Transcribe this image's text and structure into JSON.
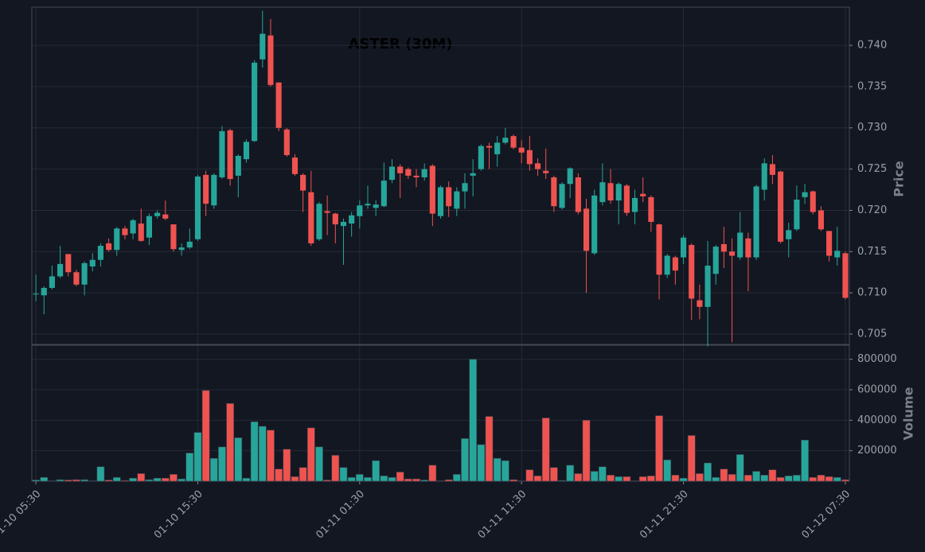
{
  "chart_data": {
    "type": "candlestick",
    "title": "ASTER (30M)",
    "ylabel": "Price",
    "up_color": "#26a69a",
    "down_color": "#ef5350",
    "grid": true,
    "categories": [
      "01-10 05:30",
      null,
      null,
      null,
      null,
      null,
      null,
      null,
      null,
      null,
      null,
      null,
      null,
      null,
      null,
      null,
      null,
      null,
      null,
      null,
      "01-10 15:30",
      null,
      null,
      null,
      null,
      null,
      null,
      null,
      null,
      null,
      null,
      null,
      null,
      null,
      null,
      null,
      null,
      null,
      null,
      null,
      "01-11 01:30",
      null,
      null,
      null,
      null,
      null,
      null,
      null,
      null,
      null,
      null,
      null,
      null,
      null,
      null,
      null,
      null,
      null,
      null,
      null,
      "01-11 11:30",
      null,
      null,
      null,
      null,
      null,
      null,
      null,
      null,
      null,
      null,
      null,
      null,
      null,
      null,
      null,
      null,
      null,
      null,
      null,
      "01-11 21:30",
      null,
      null,
      null,
      null,
      null,
      null,
      null,
      null,
      null,
      null,
      null,
      null,
      null,
      null,
      null,
      null,
      null,
      null,
      null,
      "01-12 07:30"
    ],
    "open": [
      0.7098,
      0.7097,
      0.7106,
      0.712,
      0.7147,
      0.7125,
      0.711,
      0.7132,
      0.714,
      0.716,
      0.7152,
      0.7178,
      0.7172,
      0.7184,
      0.7167,
      0.7193,
      0.7195,
      0.7183,
      0.7152,
      0.7155,
      0.7165,
      0.7243,
      0.7206,
      0.724,
      0.7297,
      0.7242,
      0.7262,
      0.7284,
      0.7383,
      0.7412,
      0.7355,
      0.7298,
      0.7264,
      0.7243,
      0.7222,
      0.7165,
      0.7199,
      0.7196,
      0.7181,
      0.7184,
      0.7193,
      0.7206,
      0.7203,
      0.7205,
      0.7237,
      0.7253,
      0.725,
      0.7242,
      0.724,
      0.7254,
      0.7193,
      0.7228,
      0.7202,
      0.7223,
      0.7242,
      0.725,
      0.7278,
      0.7268,
      0.7282,
      0.729,
      0.7276,
      0.7273,
      0.7257,
      0.7248,
      0.724,
      0.7203,
      0.7232,
      0.724,
      0.7202,
      0.7148,
      0.721,
      0.7233,
      0.7212,
      0.723,
      0.7198,
      0.722,
      0.7216,
      0.7183,
      0.7122,
      0.7143,
      0.7143,
      0.7158,
      0.7091,
      0.7083,
      0.7123,
      0.7159,
      0.715,
      0.7143,
      0.7166,
      0.7143,
      0.7225,
      0.7256,
      0.7247,
      0.7165,
      0.7177,
      0.7216,
      0.7223,
      0.72,
      0.7175,
      0.7143,
      0.7148
    ],
    "high": [
      0.7122,
      0.7108,
      0.7133,
      0.7157,
      0.7147,
      0.7128,
      0.7138,
      0.7148,
      0.716,
      0.7166,
      0.718,
      0.7181,
      0.719,
      0.7202,
      0.7196,
      0.72,
      0.7212,
      0.7183,
      0.716,
      0.7178,
      0.7243,
      0.7248,
      0.7245,
      0.7302,
      0.7299,
      0.7268,
      0.7286,
      0.7382,
      0.7442,
      0.7432,
      0.7355,
      0.73,
      0.7268,
      0.7245,
      0.7248,
      0.721,
      0.7218,
      0.7197,
      0.719,
      0.7198,
      0.7212,
      0.723,
      0.7212,
      0.7258,
      0.7262,
      0.7256,
      0.7252,
      0.725,
      0.7257,
      0.7256,
      0.723,
      0.7235,
      0.7228,
      0.7245,
      0.7262,
      0.728,
      0.7282,
      0.729,
      0.73,
      0.7292,
      0.7285,
      0.729,
      0.7263,
      0.7275,
      0.7242,
      0.7234,
      0.7252,
      0.7245,
      0.7214,
      0.7225,
      0.7257,
      0.725,
      0.7234,
      0.7232,
      0.7225,
      0.724,
      0.7218,
      0.7184,
      0.7147,
      0.7145,
      0.717,
      0.716,
      0.711,
      0.7163,
      0.7158,
      0.718,
      0.7166,
      0.7198,
      0.7173,
      0.7231,
      0.7263,
      0.7267,
      0.7248,
      0.7185,
      0.723,
      0.7232,
      0.7224,
      0.7205,
      0.7175,
      0.718,
      0.715
    ],
    "low": [
      0.709,
      0.7074,
      0.7104,
      0.7118,
      0.712,
      0.7108,
      0.7097,
      0.7126,
      0.7132,
      0.715,
      0.7145,
      0.7165,
      0.7165,
      0.7162,
      0.7158,
      0.719,
      0.7188,
      0.715,
      0.7145,
      0.7153,
      0.7163,
      0.7193,
      0.7202,
      0.7238,
      0.723,
      0.7216,
      0.7258,
      0.7283,
      0.7373,
      0.735,
      0.7296,
      0.7265,
      0.7242,
      0.7198,
      0.7157,
      0.7163,
      0.717,
      0.716,
      0.7134,
      0.7168,
      0.7178,
      0.7202,
      0.7193,
      0.7204,
      0.7233,
      0.7215,
      0.7238,
      0.7228,
      0.7236,
      0.7181,
      0.719,
      0.7192,
      0.7193,
      0.7202,
      0.7217,
      0.7248,
      0.725,
      0.7253,
      0.728,
      0.7274,
      0.7257,
      0.7248,
      0.7242,
      0.7238,
      0.7198,
      0.7201,
      0.7215,
      0.7195,
      0.71,
      0.7146,
      0.7206,
      0.7208,
      0.7183,
      0.7193,
      0.7183,
      0.721,
      0.7174,
      0.7092,
      0.7118,
      0.711,
      0.7135,
      0.7067,
      0.7068,
      0.7035,
      0.711,
      0.713,
      0.704,
      0.714,
      0.7102,
      0.714,
      0.7212,
      0.7232,
      0.716,
      0.7143,
      0.7175,
      0.7208,
      0.7195,
      0.7175,
      0.7138,
      0.7133,
      0.7092
    ],
    "close": [
      0.7099,
      0.7106,
      0.712,
      0.7135,
      0.7125,
      0.711,
      0.7136,
      0.714,
      0.7157,
      0.7152,
      0.7178,
      0.717,
      0.7188,
      0.7163,
      0.7193,
      0.7197,
      0.719,
      0.7153,
      0.7155,
      0.7162,
      0.7241,
      0.7208,
      0.7243,
      0.7296,
      0.7238,
      0.7266,
      0.7283,
      0.7379,
      0.7414,
      0.7352,
      0.73,
      0.7267,
      0.7244,
      0.7224,
      0.716,
      0.7208,
      0.7197,
      0.7183,
      0.7186,
      0.7194,
      0.7206,
      0.7208,
      0.7207,
      0.7236,
      0.7253,
      0.7245,
      0.7242,
      0.724,
      0.725,
      0.7196,
      0.7228,
      0.7205,
      0.7223,
      0.7233,
      0.7245,
      0.7278,
      0.7276,
      0.7282,
      0.7288,
      0.7276,
      0.727,
      0.7256,
      0.725,
      0.7245,
      0.7205,
      0.7232,
      0.7251,
      0.7198,
      0.7151,
      0.7218,
      0.7234,
      0.7212,
      0.7232,
      0.7197,
      0.7215,
      0.7217,
      0.7186,
      0.7122,
      0.7145,
      0.7127,
      0.7167,
      0.7093,
      0.7083,
      0.7133,
      0.7156,
      0.715,
      0.7145,
      0.7173,
      0.7143,
      0.7229,
      0.7257,
      0.7243,
      0.7162,
      0.7176,
      0.7213,
      0.7222,
      0.7198,
      0.7177,
      0.7145,
      0.7151,
      0.7094
    ],
    "ylim": [
      0.70375,
      0.74463
    ],
    "yticks": [
      0.705,
      {
        "value": 0.71,
        "label": "0.710"
      },
      0.715,
      {
        "value": 0.72,
        "label": "0.720"
      },
      0.725,
      {
        "value": 0.73,
        "label": "0.730"
      },
      0.735,
      {
        "value": 0.74,
        "label": "0.740"
      }
    ],
    "volume": {
      "label": "Volume",
      "ylim": [
        0,
        892000
      ],
      "yticks": [
        200000,
        400000,
        600000,
        800000
      ],
      "values": [
        8000,
        25000,
        3000,
        10000,
        8000,
        10000,
        10000,
        3000,
        95000,
        8000,
        25000,
        5000,
        20000,
        50000,
        10000,
        20000,
        20000,
        45000,
        15000,
        185000,
        320000,
        595000,
        150000,
        225000,
        510000,
        285000,
        20000,
        390000,
        360000,
        335000,
        80000,
        210000,
        30000,
        90000,
        350000,
        225000,
        8000,
        170000,
        90000,
        25000,
        45000,
        25000,
        135000,
        35000,
        25000,
        60000,
        15000,
        15000,
        8000,
        105000,
        3000,
        10000,
        45000,
        280000,
        800000,
        240000,
        425000,
        150000,
        135000,
        10000,
        3000,
        75000,
        35000,
        415000,
        90000,
        5000,
        105000,
        50000,
        400000,
        65000,
        95000,
        40000,
        30000,
        30000,
        3000,
        30000,
        35000,
        430000,
        140000,
        40000,
        20000,
        300000,
        50000,
        120000,
        25000,
        80000,
        45000,
        175000,
        40000,
        65000,
        40000,
        75000,
        25000,
        35000,
        40000,
        270000,
        25000,
        40000,
        30000,
        25000,
        10000
      ]
    }
  }
}
